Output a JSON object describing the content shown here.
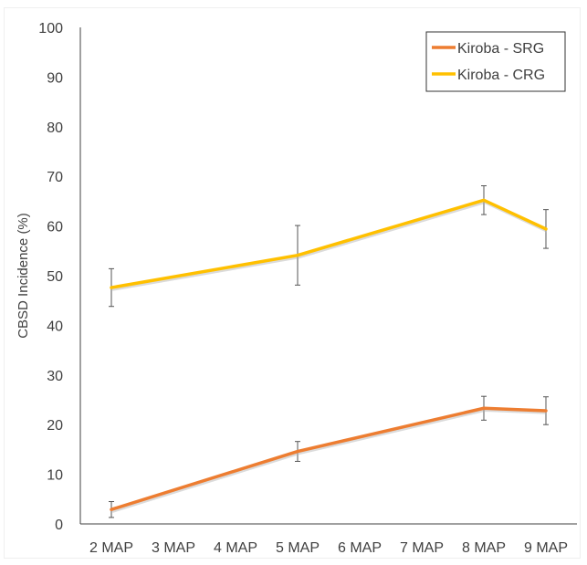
{
  "chart_data": {
    "type": "line",
    "title": "",
    "xlabel": "",
    "ylabel": "CBSD Incidence (%)",
    "categories": [
      "2 MAP",
      "3 MAP",
      "4 MAP",
      "5 MAP",
      "6 MAP",
      "7 MAP",
      "8 MAP",
      "9 MAP"
    ],
    "ylim": [
      0,
      100
    ],
    "yticks": [
      0,
      10,
      20,
      30,
      40,
      50,
      60,
      70,
      80,
      90,
      100
    ],
    "grid": false,
    "legend_position": "top-right",
    "series": [
      {
        "name": "Kiroba - SRG",
        "color": "#ED7D31",
        "points": [
          {
            "x": "2 MAP",
            "y": 2.9,
            "err": 1.6
          },
          {
            "x": "5 MAP",
            "y": 14.6,
            "err": 2.0
          },
          {
            "x": "8 MAP",
            "y": 23.3,
            "err": 2.4
          },
          {
            "x": "9 MAP",
            "y": 22.8,
            "err": 2.8
          }
        ]
      },
      {
        "name": "Kiroba - CRG",
        "color": "#FFC000",
        "points": [
          {
            "x": "2 MAP",
            "y": 47.6,
            "err": 3.8
          },
          {
            "x": "5 MAP",
            "y": 54.1,
            "err": 6.0
          },
          {
            "x": "8 MAP",
            "y": 65.2,
            "err": 2.9
          },
          {
            "x": "9 MAP",
            "y": 59.4,
            "err": 3.9
          }
        ]
      }
    ]
  }
}
